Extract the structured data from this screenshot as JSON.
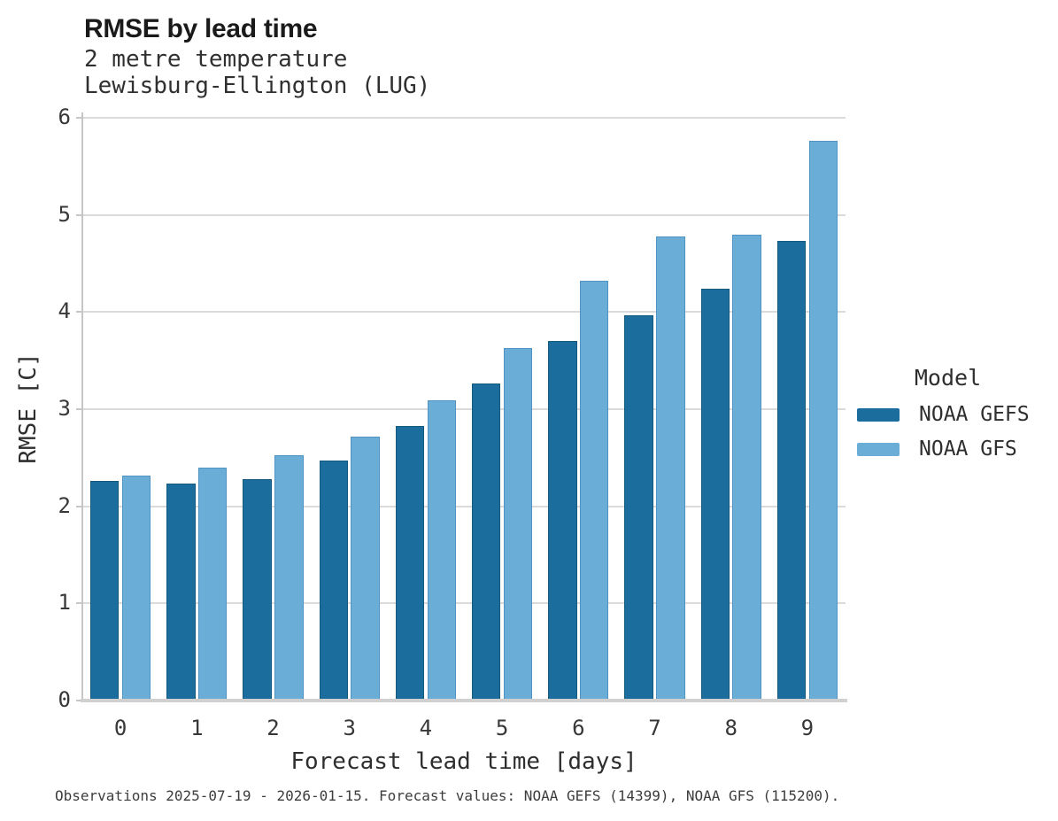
{
  "header": {
    "title": "RMSE by lead time",
    "subtitle_line1": "2 metre temperature",
    "subtitle_line2": "Lewisburg-Ellington (LUG)"
  },
  "legend": {
    "title": "Model",
    "items": [
      {
        "label": "NOAA GEFS",
        "color": "#1b6d9e"
      },
      {
        "label": "NOAA GFS",
        "color": "#6aaed8"
      }
    ]
  },
  "footer": {
    "note": "Observations 2025-07-19 - 2026-01-15. Forecast values: NOAA GEFS (14399), NOAA GFS (115200)."
  },
  "colors": {
    "gefs_bar": "#1b6d9e",
    "gefs_edge": "#15597f",
    "gfs_bar": "#6aaed8",
    "gfs_edge": "#5093c2",
    "gridline": "#dadada",
    "axis": "#c6c6c6"
  },
  "chart_data": {
    "type": "bar",
    "title": "RMSE by lead time",
    "subtitle": [
      "2 metre temperature",
      "Lewisburg-Ellington (LUG)"
    ],
    "categories": [
      "0",
      "1",
      "2",
      "3",
      "4",
      "5",
      "6",
      "7",
      "8",
      "9"
    ],
    "series": [
      {
        "name": "NOAA GEFS",
        "color": "#1b6d9e",
        "edge": "#15597f",
        "values": [
          2.26,
          2.23,
          2.28,
          2.47,
          2.83,
          3.26,
          3.7,
          3.97,
          4.24,
          4.73
        ]
      },
      {
        "name": "NOAA GFS",
        "color": "#6aaed8",
        "edge": "#5093c2",
        "values": [
          2.32,
          2.4,
          2.53,
          2.72,
          3.09,
          3.63,
          4.32,
          4.78,
          4.8,
          5.76
        ]
      }
    ],
    "xlabel": "Forecast lead time [days]",
    "ylabel": "RMSE [C]",
    "ylim": [
      0,
      6
    ],
    "yticks": [
      0,
      1,
      2,
      3,
      4,
      5,
      6
    ],
    "grid": true,
    "legend_title": "Model",
    "legend_position": "right"
  }
}
